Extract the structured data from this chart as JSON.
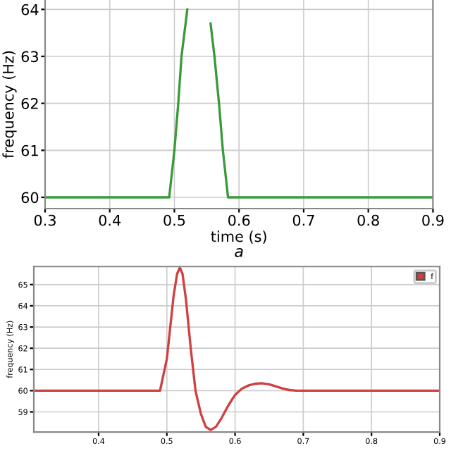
{
  "chart_data": [
    {
      "type": "line",
      "xlabel": "time (s)",
      "ylabel": "frequency (Hz)",
      "annotations": [
        "a"
      ],
      "grid": true,
      "legend": false,
      "xlim": [
        0.3,
        0.9
      ],
      "ylim": [
        59.76,
        64.2
      ],
      "xticks": [
        0.3,
        0.4,
        0.5,
        0.6,
        0.7,
        0.8,
        0.9
      ],
      "yticks": [
        60,
        61,
        62,
        63,
        64
      ],
      "series": [
        {
          "color": "#3a9a3a",
          "x": [
            0.3,
            0.492,
            0.5,
            0.506,
            0.511,
            0.52,
            0.525,
            0.548,
            0.556,
            0.562,
            0.569,
            0.575,
            0.583,
            0.9
          ],
          "values": [
            60,
            60,
            61,
            62,
            63,
            64,
            null,
            null,
            63.7,
            63,
            62,
            61,
            60,
            60
          ]
        }
      ]
    },
    {
      "type": "line",
      "ylabel": "frequency (Hz)",
      "grid": true,
      "legend": "top right",
      "xlim": [
        0.305,
        0.9
      ],
      "ylim": [
        58.05,
        65.85
      ],
      "xticks": [
        0.4,
        0.5,
        0.6,
        0.7,
        0.8,
        0.9
      ],
      "yticks": [
        59,
        60,
        61,
        62,
        63,
        64,
        65
      ],
      "series": [
        {
          "name": "f",
          "color": "#d04040",
          "x": [
            0.305,
            0.49,
            0.5,
            0.505,
            0.51,
            0.515,
            0.519,
            0.523,
            0.528,
            0.535,
            0.542,
            0.55,
            0.557,
            0.564,
            0.572,
            0.58,
            0.59,
            0.6,
            0.61,
            0.62,
            0.63,
            0.639,
            0.65,
            0.66,
            0.67,
            0.68,
            0.69,
            0.7,
            0.9
          ],
          "values": [
            60,
            60,
            61.5,
            63,
            64.5,
            65.5,
            65.8,
            65.5,
            64.3,
            62,
            60,
            58.9,
            58.3,
            58.15,
            58.3,
            58.7,
            59.3,
            59.8,
            60.1,
            60.25,
            60.33,
            60.35,
            60.3,
            60.2,
            60.1,
            60.03,
            60,
            60,
            60
          ]
        }
      ]
    }
  ]
}
